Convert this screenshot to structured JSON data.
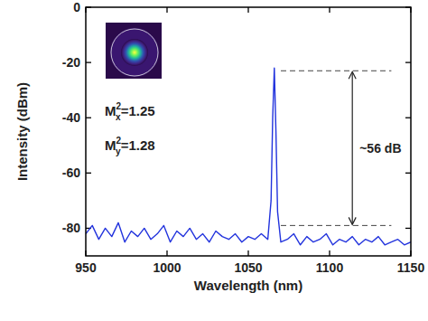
{
  "chart_data": {
    "type": "line",
    "x_label": "Wavelength (nm)",
    "y_label": "Intensity (dBm)",
    "xlim": [
      950,
      1150
    ],
    "ylim": [
      -90,
      0
    ],
    "xticks": [
      950,
      1000,
      1050,
      1100,
      1150
    ],
    "yticks": [
      0,
      -20,
      -40,
      -60,
      -80
    ],
    "color": "#2233dd",
    "x": [
      950,
      954,
      958,
      962,
      966,
      970,
      974,
      978,
      982,
      986,
      990,
      994,
      998,
      1002,
      1006,
      1010,
      1014,
      1018,
      1022,
      1026,
      1030,
      1034,
      1038,
      1042,
      1046,
      1050,
      1054,
      1058,
      1062,
      1064,
      1065,
      1066,
      1067,
      1068,
      1070,
      1074,
      1078,
      1082,
      1086,
      1090,
      1094,
      1098,
      1102,
      1106,
      1110,
      1114,
      1118,
      1122,
      1126,
      1130,
      1134,
      1138,
      1142,
      1146,
      1150
    ],
    "values": [
      -82,
      -79,
      -84,
      -80,
      -83,
      -78,
      -85,
      -81,
      -83,
      -80,
      -84,
      -82,
      -79,
      -85,
      -81,
      -83,
      -80,
      -84,
      -82,
      -85,
      -81,
      -83,
      -84,
      -82,
      -85,
      -83,
      -84,
      -82,
      -84,
      -70,
      -40,
      -22,
      -45,
      -74,
      -85,
      -84,
      -82,
      -86,
      -83,
      -85,
      -84,
      -82,
      -86,
      -84,
      -85,
      -83,
      -86,
      -84,
      -85,
      -83,
      -86,
      -85,
      -84,
      -86,
      -85
    ],
    "annotations": [
      {
        "text": "~56 dB",
        "y_top": -23,
        "y_bottom": -79
      }
    ],
    "inset_labels": [
      {
        "base": "M",
        "sup": "2",
        "sub": "x",
        "value": "=1.25"
      },
      {
        "base": "M",
        "sup": "2",
        "sub": "y",
        "value": "=1.28"
      }
    ]
  }
}
